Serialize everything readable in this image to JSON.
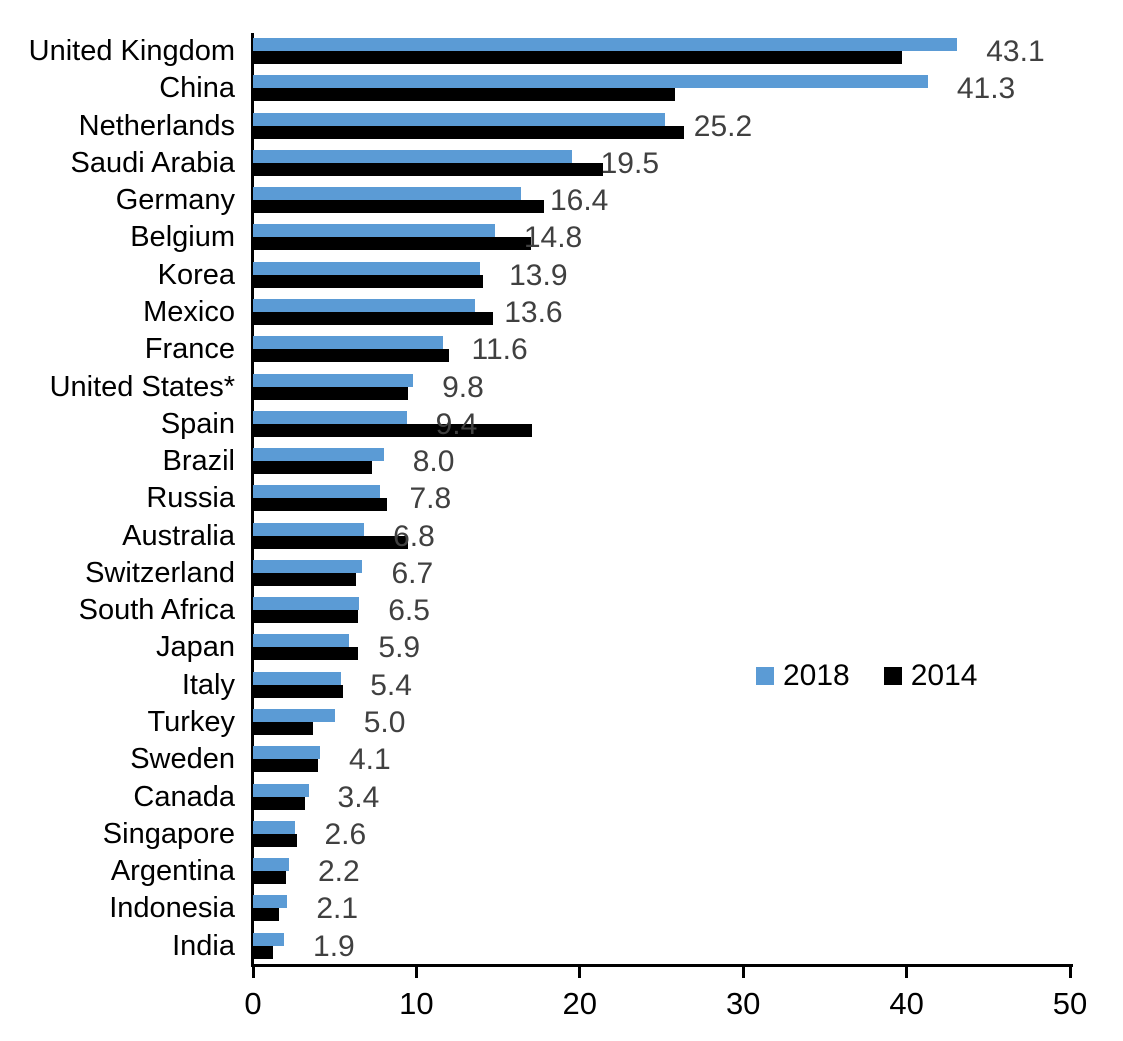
{
  "chart_data": {
    "type": "bar",
    "orientation": "horizontal",
    "title": "",
    "xlabel": "",
    "ylabel": "",
    "xlim": [
      0,
      50
    ],
    "x_ticks": [
      0,
      10,
      20,
      30,
      40,
      50
    ],
    "grid": false,
    "legend_position": "middle-right",
    "categories": [
      "United Kingdom",
      "China",
      "Netherlands",
      "Saudi Arabia",
      "Germany",
      "Belgium",
      "Korea",
      "Mexico",
      "France",
      "United States*",
      "Spain",
      "Brazil",
      "Russia",
      "Australia",
      "Switzerland",
      "South Africa",
      "Japan",
      "Italy",
      "Turkey",
      "Sweden",
      "Canada",
      "Singapore",
      "Argentina",
      "Indonesia",
      "India"
    ],
    "series": [
      {
        "name": "2018",
        "color": "#5B9BD5",
        "values": [
          43.1,
          41.3,
          25.2,
          19.5,
          16.4,
          14.8,
          13.9,
          13.6,
          11.6,
          9.8,
          9.4,
          8.0,
          7.8,
          6.8,
          6.7,
          6.5,
          5.9,
          5.4,
          5.0,
          4.1,
          3.4,
          2.6,
          2.2,
          2.1,
          1.9
        ],
        "labels": [
          "43.1",
          "41.3",
          "25.2",
          "19.5",
          "16.4",
          "14.8",
          "13.9",
          "13.6",
          "11.6",
          "9.8",
          "9.4",
          "8.0",
          "7.8",
          "6.8",
          "6.7",
          "6.5",
          "5.9",
          "5.4",
          "5.0",
          "4.1",
          "3.4",
          "2.6",
          "2.2",
          "2.1",
          "1.9"
        ]
      },
      {
        "name": "2014",
        "color": "#000000",
        "values": [
          39.7,
          25.8,
          26.4,
          21.4,
          17.8,
          17.0,
          14.1,
          14.7,
          12.0,
          9.5,
          17.1,
          7.3,
          8.2,
          9.5,
          6.3,
          6.4,
          6.4,
          5.5,
          3.7,
          4.0,
          3.2,
          2.7,
          2.0,
          1.6,
          1.2
        ]
      }
    ],
    "value_label_color": "#404040",
    "legend": [
      {
        "label": "2018",
        "color": "#5B9BD5"
      },
      {
        "label": "2014",
        "color": "#000000"
      }
    ]
  }
}
